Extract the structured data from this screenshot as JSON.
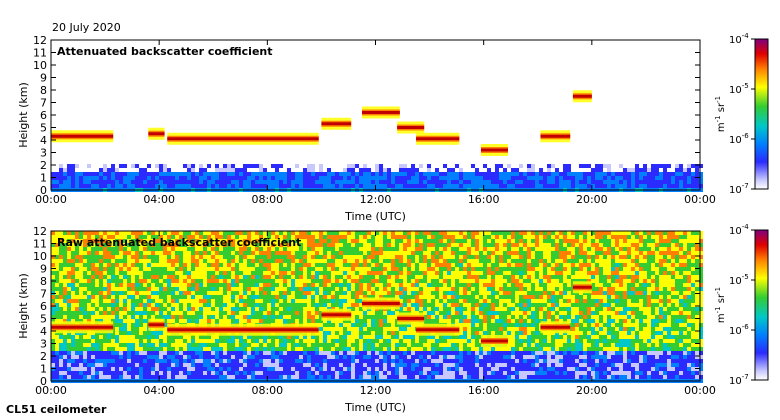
{
  "header": {
    "date": "20 July 2020"
  },
  "footer": {
    "instrument": "CL51 ceilometer"
  },
  "colorbar": {
    "tick_labels": [
      {
        "base": "10",
        "exp": "-4"
      },
      {
        "base": "10",
        "exp": "-5"
      },
      {
        "base": "10",
        "exp": "-6"
      },
      {
        "base": "10",
        "exp": "-7"
      }
    ],
    "unit": {
      "m": "m",
      "m_exp": "-1",
      "sr": "sr",
      "sr_exp": "-1"
    },
    "colors": [
      "#ffffff",
      "#c8c8ff",
      "#2b2bff",
      "#0080ff",
      "#00c8c8",
      "#33cc33",
      "#ffff00",
      "#ff8000",
      "#e00000",
      "#800080"
    ]
  },
  "chart_data": [
    {
      "type": "heatmap",
      "title": "Attenuated backscatter coefficient",
      "xlabel": "Time (UTC)",
      "ylabel": "Height (km)",
      "x_ticks": [
        "00:00",
        "04:00",
        "08:00",
        "12:00",
        "16:00",
        "20:00",
        "00:00"
      ],
      "y_ticks": [
        "0",
        "1",
        "2",
        "3",
        "4",
        "5",
        "6",
        "7",
        "8",
        "9",
        "10",
        "11",
        "12"
      ],
      "xlim": [
        0,
        24
      ],
      "ylim": [
        0,
        12
      ],
      "z_scale": "log",
      "zlim": [
        1e-07,
        0.0001
      ],
      "cloud_layers": [
        {
          "t_start": 0.0,
          "t_end": 2.3,
          "height_km": 4.3
        },
        {
          "t_start": 3.6,
          "t_end": 4.2,
          "height_km": 4.5
        },
        {
          "t_start": 4.3,
          "t_end": 9.9,
          "height_km": 4.1
        },
        {
          "t_start": 10.0,
          "t_end": 11.1,
          "height_km": 5.3
        },
        {
          "t_start": 11.5,
          "t_end": 12.9,
          "height_km": 6.2
        },
        {
          "t_start": 12.8,
          "t_end": 13.8,
          "height_km": 5.0
        },
        {
          "t_start": 13.5,
          "t_end": 15.1,
          "height_km": 4.1
        },
        {
          "t_start": 15.9,
          "t_end": 16.9,
          "height_km": 3.2
        },
        {
          "t_start": 18.1,
          "t_end": 19.2,
          "height_km": 4.3
        },
        {
          "t_start": 19.3,
          "t_end": 20.0,
          "height_km": 7.5
        }
      ]
    },
    {
      "type": "heatmap",
      "title": "Raw attenuated backscatter coefficient",
      "xlabel": "Time (UTC)",
      "ylabel": "Height (km)",
      "x_ticks": [
        "00:00",
        "04:00",
        "08:00",
        "12:00",
        "16:00",
        "20:00",
        "00:00"
      ],
      "y_ticks": [
        "0",
        "1",
        "2",
        "3",
        "4",
        "5",
        "6",
        "7",
        "8",
        "9",
        "10",
        "11",
        "12"
      ],
      "xlim": [
        0,
        24
      ],
      "ylim": [
        0,
        12
      ],
      "z_scale": "log",
      "zlim": [
        1e-07,
        0.0001
      ],
      "cloud_layers": [
        {
          "t_start": 0.0,
          "t_end": 2.3,
          "height_km": 4.3
        },
        {
          "t_start": 3.6,
          "t_end": 4.2,
          "height_km": 4.5
        },
        {
          "t_start": 4.3,
          "t_end": 9.9,
          "height_km": 4.1
        },
        {
          "t_start": 10.0,
          "t_end": 11.1,
          "height_km": 5.3
        },
        {
          "t_start": 11.5,
          "t_end": 12.9,
          "height_km": 6.2
        },
        {
          "t_start": 12.8,
          "t_end": 13.8,
          "height_km": 5.0
        },
        {
          "t_start": 13.5,
          "t_end": 15.1,
          "height_km": 4.1
        },
        {
          "t_start": 15.9,
          "t_end": 16.9,
          "height_km": 3.2
        },
        {
          "t_start": 18.1,
          "t_end": 19.2,
          "height_km": 4.3
        },
        {
          "t_start": 19.3,
          "t_end": 20.0,
          "height_km": 7.5
        }
      ]
    }
  ]
}
